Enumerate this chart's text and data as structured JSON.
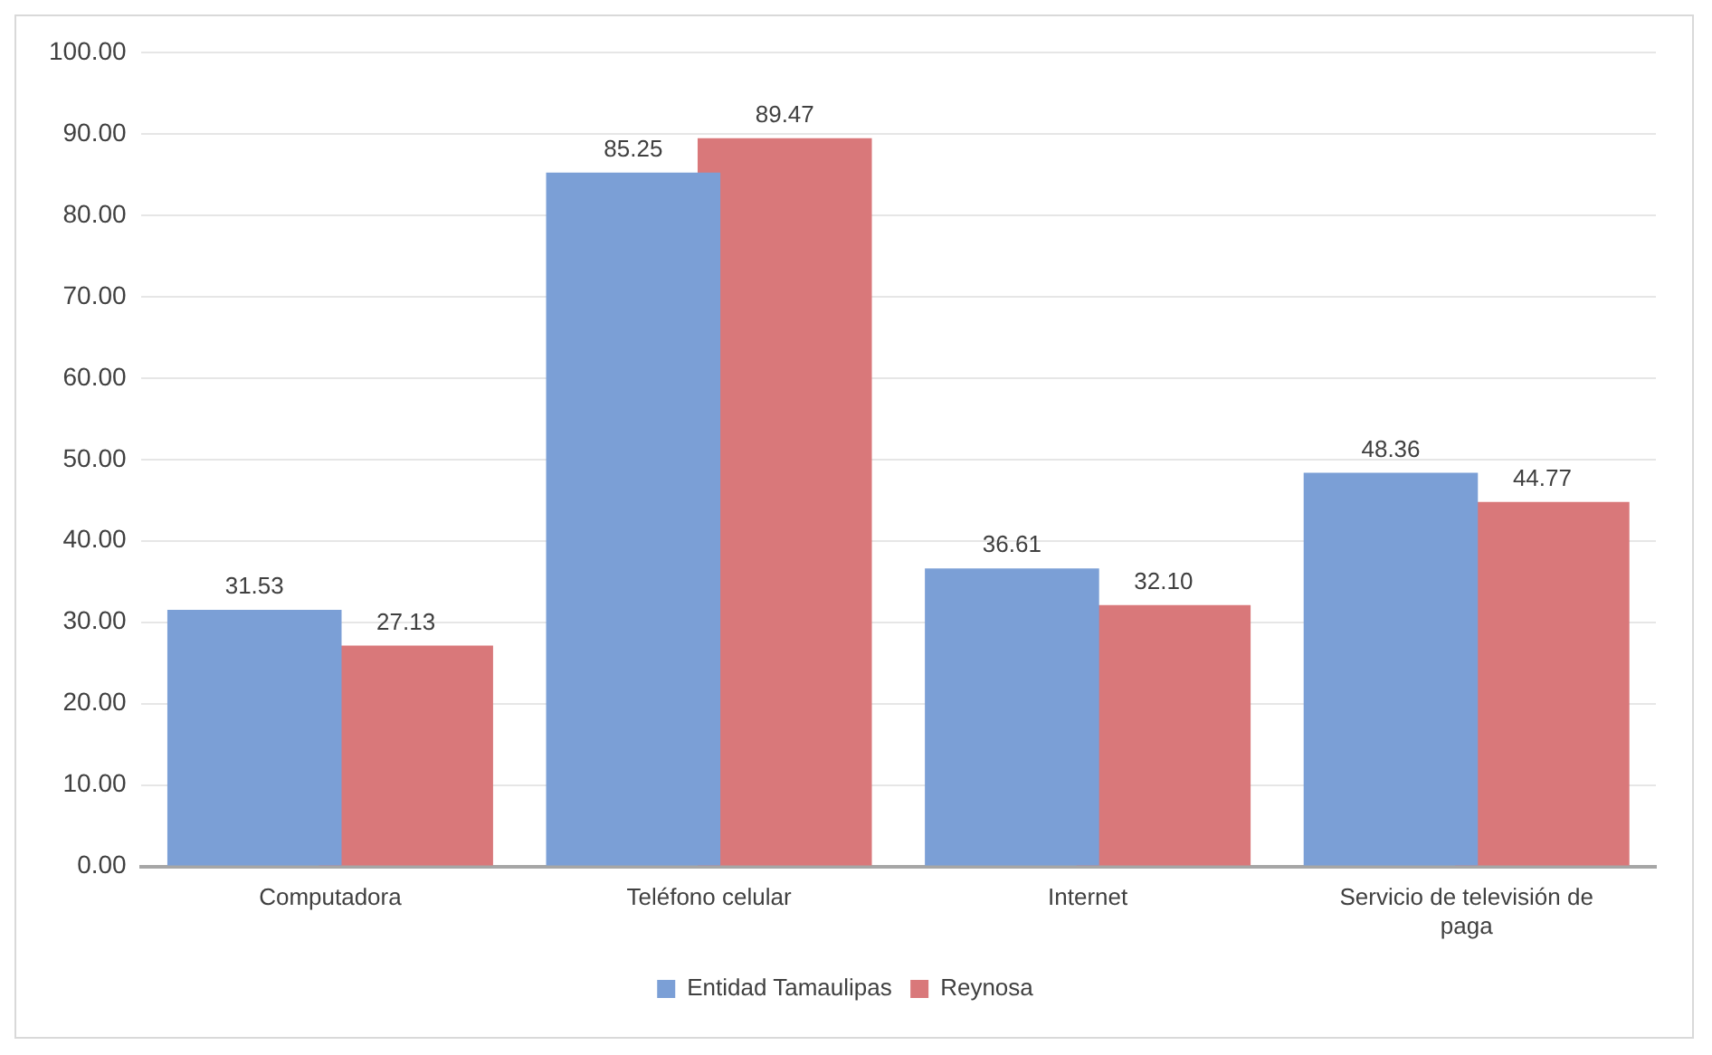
{
  "chart_data": {
    "type": "bar",
    "categories": [
      "Computadora",
      "Teléfono celular",
      "Internet",
      "Servicio de televisión de paga"
    ],
    "series": [
      {
        "name": "Entidad Tamaulipas",
        "color": "#7b9fd6",
        "values": [
          31.53,
          85.25,
          36.61,
          48.36
        ],
        "value_labels": [
          "31.53",
          "85.25",
          "36.61",
          "48.36"
        ]
      },
      {
        "name": "Reynosa",
        "color": "#d9787a",
        "values": [
          27.13,
          89.47,
          32.1,
          44.77
        ],
        "value_labels": [
          "27.13",
          "89.47",
          "32.10",
          "44.77"
        ]
      }
    ],
    "ylim": [
      0,
      100
    ],
    "yticks": [
      {
        "value": 0,
        "label": "0.00"
      },
      {
        "value": 10,
        "label": "10.00"
      },
      {
        "value": 20,
        "label": "20.00"
      },
      {
        "value": 30,
        "label": "30.00"
      },
      {
        "value": 40,
        "label": "40.00"
      },
      {
        "value": 50,
        "label": "50.00"
      },
      {
        "value": 60,
        "label": "60.00"
      },
      {
        "value": 70,
        "label": "70.00"
      },
      {
        "value": 80,
        "label": "80.00"
      },
      {
        "value": 90,
        "label": "90.00"
      },
      {
        "value": 100,
        "label": "100.00"
      }
    ],
    "grid": "y",
    "legend": "bottom"
  }
}
